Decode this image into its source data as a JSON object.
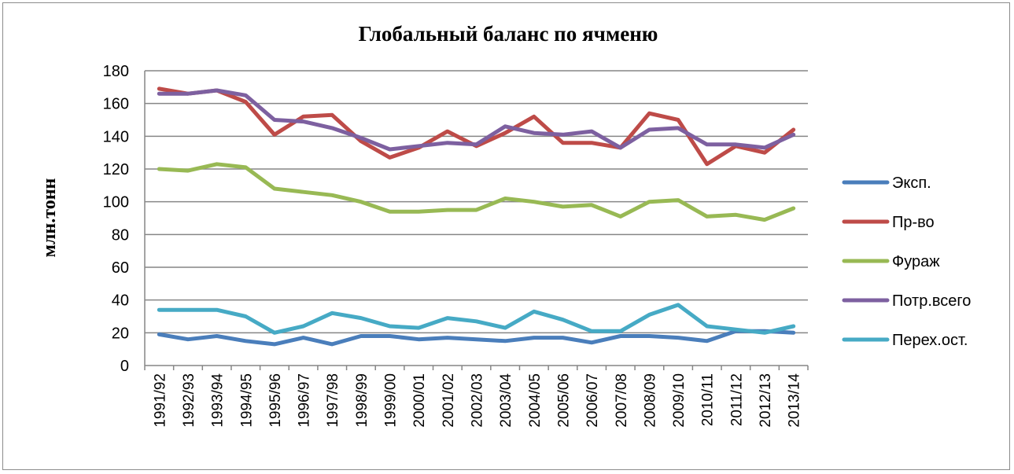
{
  "chart_data": {
    "type": "line",
    "title": "Глобальный баланс по ячменю",
    "ylabel": "млн.тонн",
    "xlabel": "",
    "ylim": [
      0,
      180
    ],
    "yticks": [
      0,
      20,
      40,
      60,
      80,
      100,
      120,
      140,
      160,
      180
    ],
    "grid": "horizontal",
    "legend_position": "right",
    "categories": [
      "1991/92",
      "1992/93",
      "1993/94",
      "1994/95",
      "1995/96",
      "1996/97",
      "1997/98",
      "1998/99",
      "1999/00",
      "2000/01",
      "2001/02",
      "2002/03",
      "2003/04",
      "2004/05",
      "2005/06",
      "2006/07",
      "2007/08",
      "2008/09",
      "2009/10",
      "2010/11",
      "2011/12",
      "2012/13",
      "2013/14"
    ],
    "series": [
      {
        "name": "Эксп.",
        "color": "#4a7ebb",
        "values": [
          19,
          16,
          18,
          15,
          13,
          17,
          13,
          18,
          18,
          16,
          17,
          16,
          15,
          17,
          17,
          14,
          18,
          18,
          17,
          15,
          21,
          21,
          20
        ]
      },
      {
        "name": "Пр-во",
        "color": "#be4b48",
        "values": [
          169,
          166,
          168,
          161,
          141,
          152,
          153,
          137,
          127,
          133,
          143,
          134,
          142,
          152,
          136,
          136,
          133,
          154,
          150,
          123,
          134,
          130,
          144
        ]
      },
      {
        "name": "Фураж",
        "color": "#98b954",
        "values": [
          120,
          119,
          123,
          121,
          108,
          106,
          104,
          100,
          94,
          94,
          95,
          95,
          102,
          100,
          97,
          98,
          91,
          100,
          101,
          91,
          92,
          89,
          96
        ]
      },
      {
        "name": "Потр.всего",
        "color": "#7d60a0",
        "values": [
          166,
          166,
          168,
          165,
          150,
          149,
          145,
          139,
          132,
          134,
          136,
          135,
          146,
          142,
          141,
          143,
          133,
          144,
          145,
          135,
          135,
          133,
          141
        ]
      },
      {
        "name": "Перех.ост.",
        "color": "#46aac5",
        "values": [
          34,
          34,
          34,
          30,
          20,
          24,
          32,
          29,
          24,
          23,
          29,
          27,
          23,
          33,
          28,
          21,
          21,
          31,
          37,
          24,
          22,
          20,
          24
        ]
      }
    ]
  }
}
